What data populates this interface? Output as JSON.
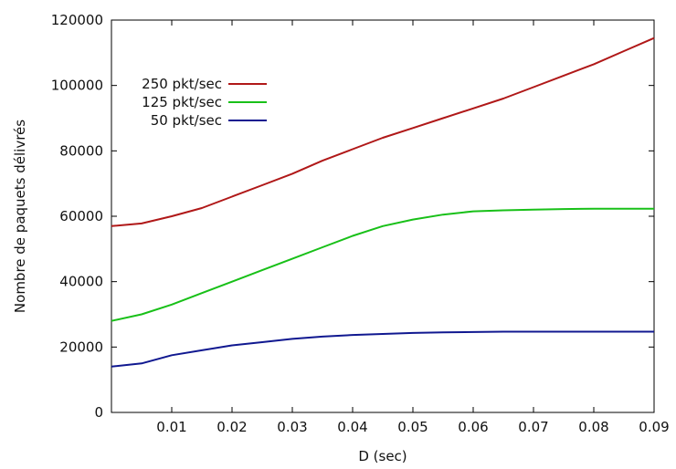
{
  "chart_data": {
    "type": "line",
    "title": "",
    "xlabel": "D (sec)",
    "ylabel": "Nombre de paquets délivrés",
    "xlim": [
      0,
      0.09
    ],
    "ylim": [
      0,
      120000
    ],
    "xticks": [
      0.01,
      0.02,
      0.03,
      0.04,
      0.05,
      0.06,
      0.07,
      0.08,
      0.09
    ],
    "xtick_labels": [
      "0.01",
      "0.02",
      "0.03",
      "0.04",
      "0.05",
      "0.06",
      "0.07",
      "0.08",
      "0.09"
    ],
    "yticks": [
      0,
      20000,
      40000,
      60000,
      80000,
      100000,
      120000
    ],
    "ytick_labels": [
      "0",
      "20000",
      "40000",
      "60000",
      "80000",
      "100000",
      "120000"
    ],
    "grid": false,
    "legend_position": "top-left",
    "x": [
      0,
      0.005,
      0.01,
      0.015,
      0.02,
      0.025,
      0.03,
      0.035,
      0.04,
      0.045,
      0.05,
      0.055,
      0.06,
      0.065,
      0.07,
      0.075,
      0.08,
      0.085,
      0.09
    ],
    "series": [
      {
        "name": "250 pkt/sec",
        "color": "#b01818",
        "values": [
          57000,
          57800,
          60000,
          62500,
          66000,
          69500,
          73000,
          77000,
          80500,
          84000,
          87000,
          90000,
          93000,
          96000,
          99500,
          103000,
          106500,
          110500,
          114500
        ]
      },
      {
        "name": "125 pkt/sec",
        "color": "#18c018",
        "values": [
          28000,
          30000,
          33000,
          36500,
          40000,
          43500,
          47000,
          50500,
          54000,
          57000,
          59000,
          60500,
          61500,
          61800,
          62000,
          62200,
          62300,
          62300,
          62300
        ]
      },
      {
        "name": "50 pkt/sec",
        "color": "#101890",
        "values": [
          14000,
          15000,
          17500,
          19000,
          20500,
          21500,
          22500,
          23200,
          23700,
          24000,
          24300,
          24500,
          24600,
          24700,
          24700,
          24700,
          24700,
          24700,
          24700
        ]
      }
    ]
  }
}
